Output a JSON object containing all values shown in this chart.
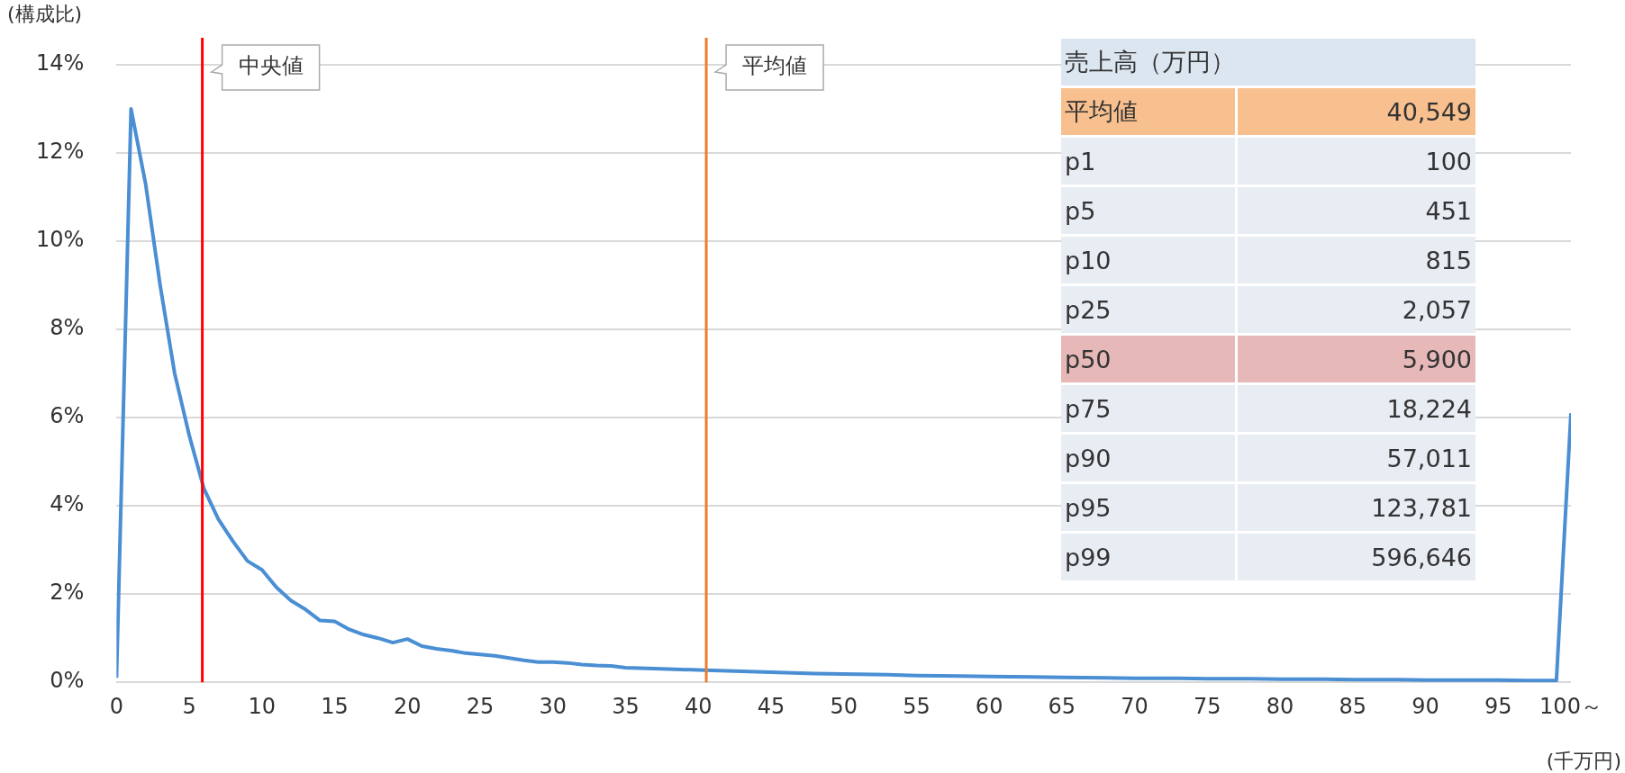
{
  "chart_data": {
    "type": "line",
    "ylabel": "(構成比)",
    "xlabel": "(千万円)",
    "x": [
      0,
      1,
      2,
      3,
      4,
      5,
      6,
      7,
      8,
      9,
      10,
      11,
      12,
      13,
      14,
      15,
      16,
      17,
      18,
      19,
      20,
      21,
      22,
      23,
      24,
      25,
      26,
      27,
      28,
      29,
      30,
      31,
      32,
      33,
      34,
      35,
      37,
      40,
      43,
      45,
      48,
      50,
      53,
      55,
      58,
      60,
      63,
      65,
      68,
      70,
      73,
      75,
      78,
      80,
      83,
      85,
      88,
      90,
      93,
      95,
      97,
      99,
      100
    ],
    "series": [
      {
        "color": "#4a8ed4",
        "values": [
          0.1,
          13.0,
          11.3,
          9.0,
          7.0,
          5.6,
          4.4,
          3.7,
          3.2,
          2.75,
          2.55,
          2.15,
          1.85,
          1.65,
          1.4,
          1.38,
          1.2,
          1.08,
          1.0,
          0.9,
          0.98,
          0.82,
          0.76,
          0.72,
          0.66,
          0.63,
          0.6,
          0.55,
          0.5,
          0.46,
          0.46,
          0.44,
          0.4,
          0.38,
          0.37,
          0.33,
          0.31,
          0.28,
          0.25,
          0.23,
          0.2,
          0.19,
          0.17,
          0.15,
          0.14,
          0.13,
          0.12,
          0.11,
          0.1,
          0.09,
          0.09,
          0.08,
          0.08,
          0.07,
          0.07,
          0.06,
          0.06,
          0.05,
          0.05,
          0.05,
          0.04,
          0.04,
          6.1
        ]
      }
    ],
    "xlim": [
      0,
      100
    ],
    "xticks": [
      0,
      5,
      10,
      15,
      20,
      25,
      30,
      35,
      40,
      45,
      50,
      55,
      60,
      65,
      70,
      75,
      80,
      85,
      90,
      95,
      {
        "value": 100,
        "label": "100～"
      }
    ],
    "ylim": [
      0,
      14
    ],
    "yticks": [
      {
        "value": 0,
        "label": "0%"
      },
      {
        "value": 2,
        "label": "2%"
      },
      {
        "value": 4,
        "label": "4%"
      },
      {
        "value": 6,
        "label": "6%"
      },
      {
        "value": 8,
        "label": "8%"
      },
      {
        "value": 10,
        "label": "10%"
      },
      {
        "value": 12,
        "label": "12%"
      },
      {
        "value": 14,
        "label": "14%"
      }
    ],
    "grid": "y",
    "marker": "none",
    "ref_lines": [
      {
        "axis": "x",
        "value": 5.9,
        "label": "中央値",
        "color": "#ff0000"
      },
      {
        "axis": "x",
        "value": 40.549,
        "label": "平均値",
        "color": "#ed7d31"
      }
    ],
    "annotations": [
      "売上高（万円）",
      "平均値",
      "40,549",
      "p1",
      "100",
      "p5",
      "451",
      "p10",
      "815",
      "p25",
      "2,057",
      "p50",
      "5,900",
      "p75",
      "18,224",
      "p90",
      "57,011",
      "p95",
      "123,781",
      "p99",
      "596,646"
    ]
  }
}
